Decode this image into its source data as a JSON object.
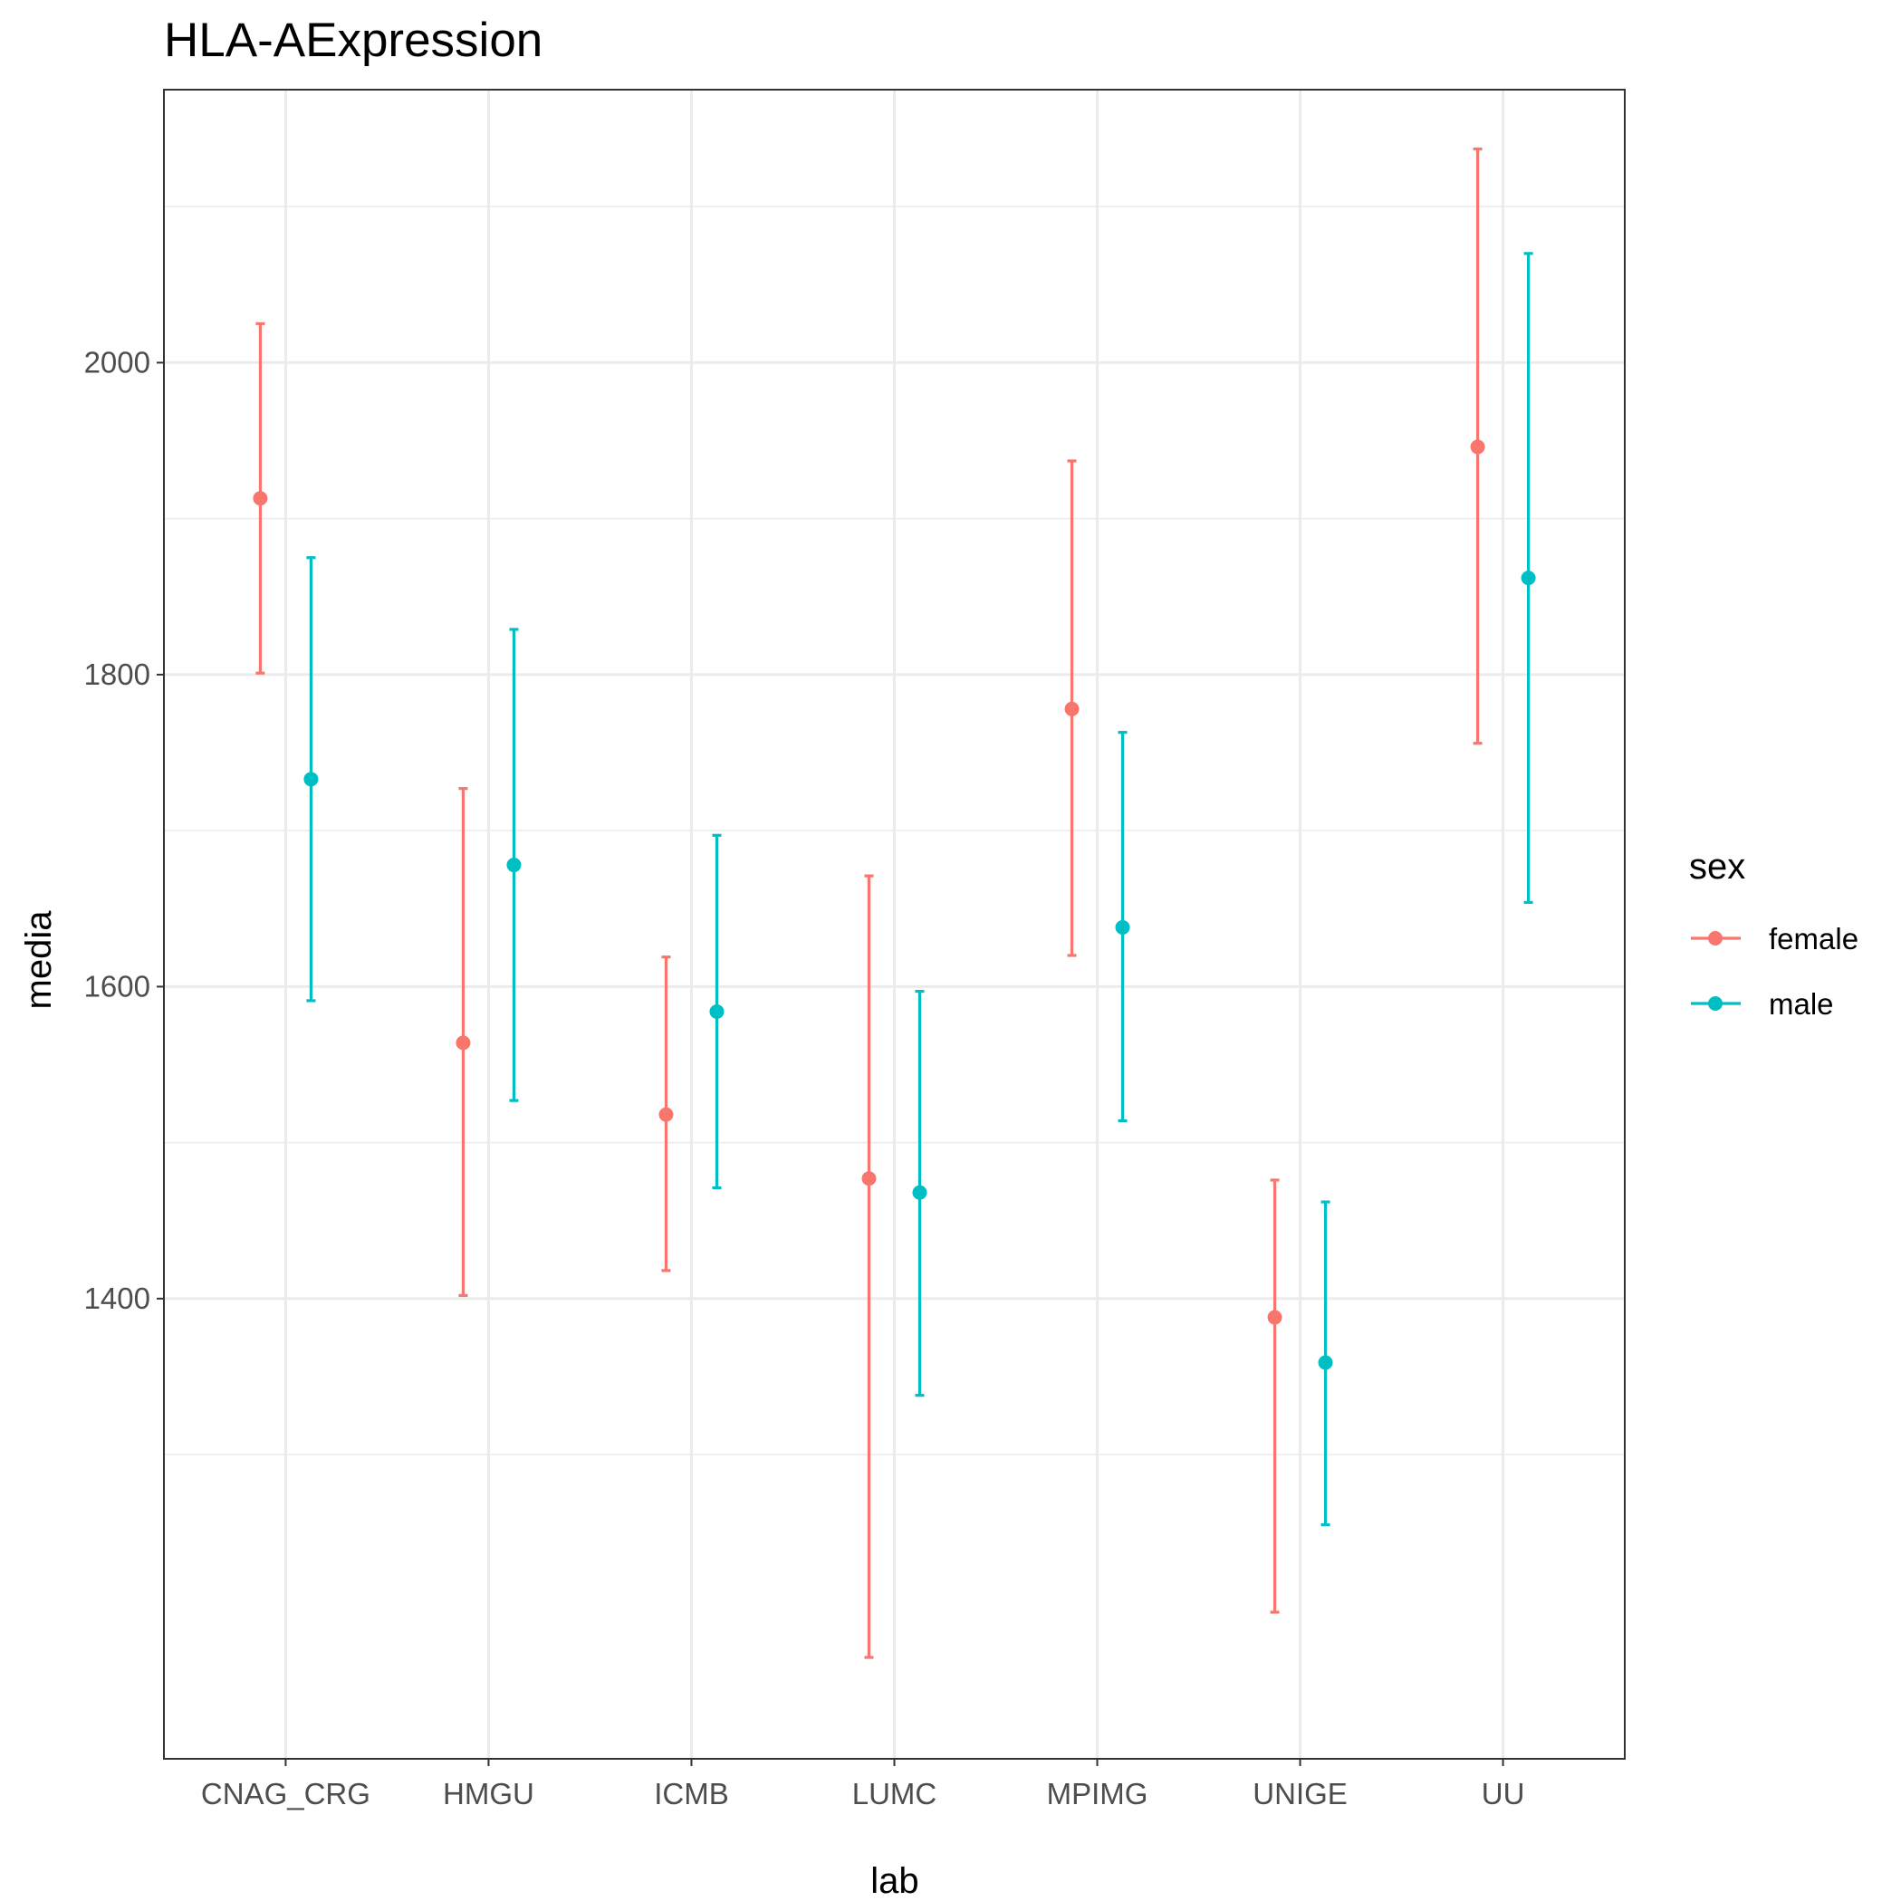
{
  "chart_data": {
    "type": "errorbar",
    "title": "HLA-AExpression",
    "xlabel": "lab",
    "ylabel": "media",
    "categories": [
      "CNAG_CRG",
      "HMGU",
      "ICMB",
      "LUMC",
      "MPIMG",
      "UNIGE",
      "UU"
    ],
    "ylim": [
      1105,
      2175
    ],
    "yticks": [
      1400,
      1600,
      1800,
      2000
    ],
    "grid": true,
    "legend": {
      "title": "sex",
      "position": "right"
    },
    "series": [
      {
        "name": "female",
        "color": "#F8766D",
        "points": [
          {
            "category": "CNAG_CRG",
            "y": 1913,
            "ymin": 1801,
            "ymax": 2025
          },
          {
            "category": "HMGU",
            "y": 1564,
            "ymin": 1402,
            "ymax": 1727
          },
          {
            "category": "ICMB",
            "y": 1518,
            "ymin": 1418,
            "ymax": 1619
          },
          {
            "category": "LUMC",
            "y": 1477,
            "ymin": 1170,
            "ymax": 1671
          },
          {
            "category": "MPIMG",
            "y": 1778,
            "ymin": 1620,
            "ymax": 1937
          },
          {
            "category": "UNIGE",
            "y": 1388,
            "ymin": 1199,
            "ymax": 1476
          },
          {
            "category": "UU",
            "y": 1946,
            "ymin": 1756,
            "ymax": 2137
          }
        ]
      },
      {
        "name": "male",
        "color": "#00BFC4",
        "points": [
          {
            "category": "CNAG_CRG",
            "y": 1733,
            "ymin": 1591,
            "ymax": 1875
          },
          {
            "category": "HMGU",
            "y": 1678,
            "ymin": 1527,
            "ymax": 1829
          },
          {
            "category": "ICMB",
            "y": 1584,
            "ymin": 1471,
            "ymax": 1697
          },
          {
            "category": "LUMC",
            "y": 1468,
            "ymin": 1338,
            "ymax": 1597
          },
          {
            "category": "MPIMG",
            "y": 1638,
            "ymin": 1514,
            "ymax": 1763
          },
          {
            "category": "UNIGE",
            "y": 1359,
            "ymin": 1255,
            "ymax": 1462
          },
          {
            "category": "UU",
            "y": 1862,
            "ymin": 1654,
            "ymax": 2070
          }
        ]
      }
    ]
  }
}
